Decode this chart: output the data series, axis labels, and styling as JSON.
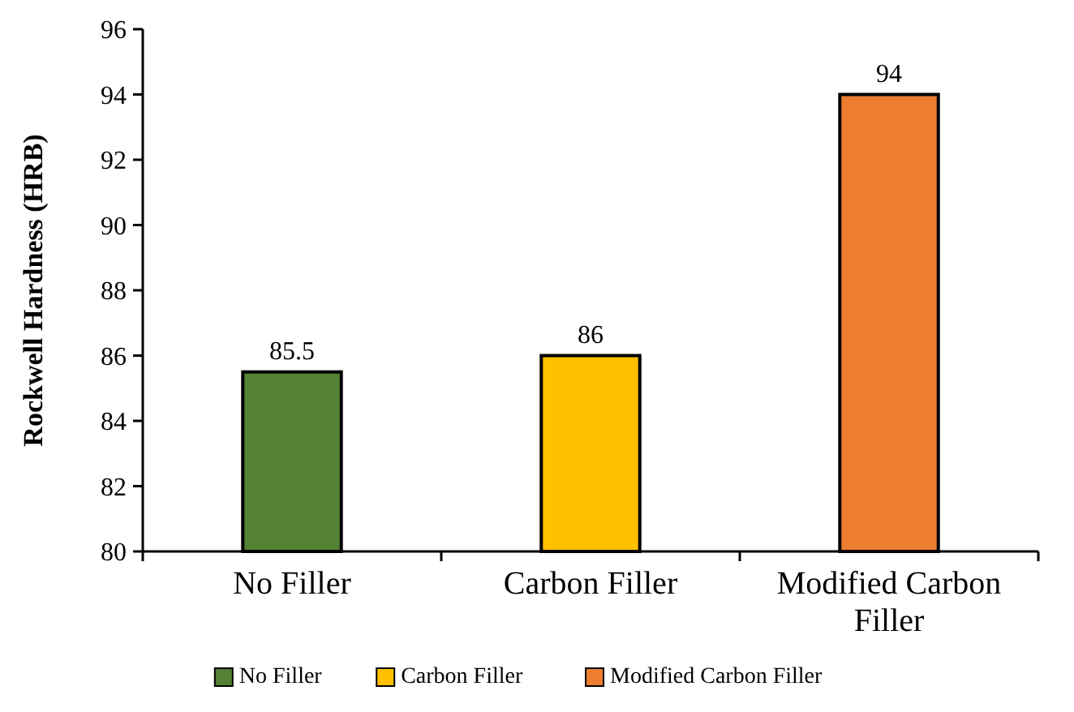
{
  "chart_data": {
    "type": "bar",
    "ylabel": "Rockwell Hardness (HRB)",
    "categories": [
      "No Filler",
      "Carbon Filler",
      "Modified Carbon Filler"
    ],
    "series": [
      {
        "name": "No Filler",
        "color": "#548235",
        "values": [
          85.5,
          null,
          null
        ]
      },
      {
        "name": "Carbon Filler",
        "color": "#ffc000",
        "values": [
          null,
          86,
          null
        ]
      },
      {
        "name": "Modified Carbon Filler",
        "color": "#ed7d31",
        "values": [
          null,
          null,
          94
        ]
      }
    ],
    "ylim": [
      80,
      96
    ],
    "yticks": [
      80,
      82,
      84,
      86,
      88,
      90,
      92,
      94,
      96
    ],
    "data_labels": true,
    "legend": "bottom",
    "grid": false
  }
}
